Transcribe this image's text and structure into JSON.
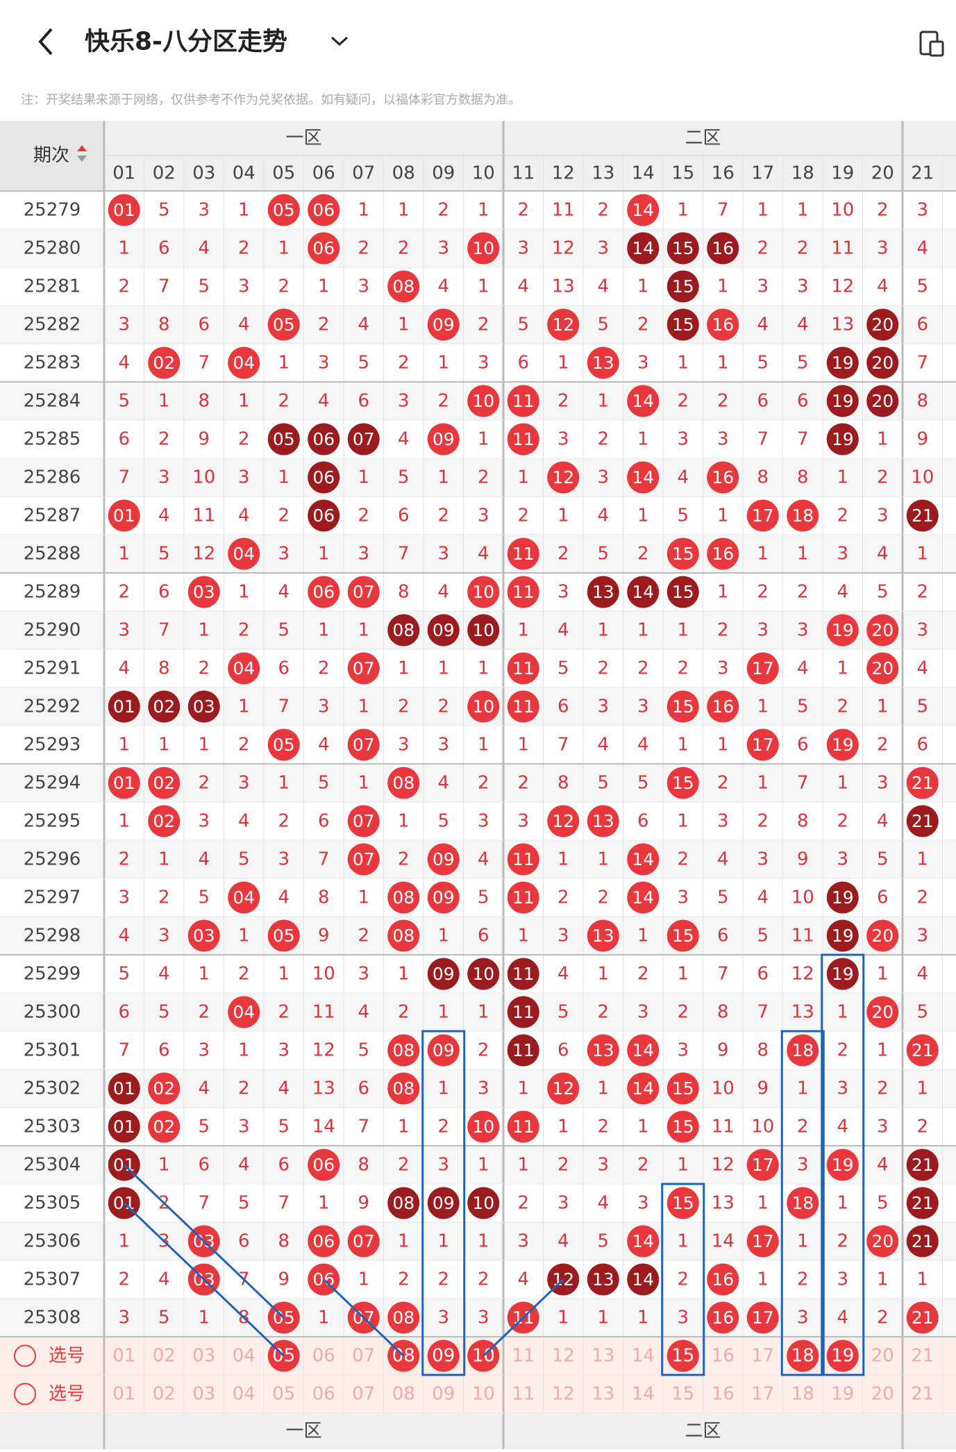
{
  "header": {
    "title": "快乐8-八分区走势",
    "note": "注：开奖结果来源于网络，仅供参考不作为兑奖依据。如有疑问，以福体彩官方数据为准。"
  },
  "table": {
    "period_label": "期次",
    "zones": [
      "一区",
      "二区"
    ],
    "columns": [
      "01",
      "02",
      "03",
      "04",
      "05",
      "06",
      "07",
      "08",
      "09",
      "10",
      "11",
      "12",
      "13",
      "14",
      "15",
      "16",
      "17",
      "18",
      "19",
      "20",
      "21"
    ],
    "rows": [
      {
        "issue": "25279",
        "cells": [
          "01",
          5,
          3,
          1,
          "05",
          "06",
          1,
          1,
          2,
          1,
          2,
          11,
          2,
          "14",
          1,
          7,
          1,
          1,
          10,
          2,
          3
        ],
        "dark": []
      },
      {
        "issue": "25280",
        "cells": [
          1,
          6,
          4,
          2,
          1,
          "06",
          2,
          2,
          3,
          "10",
          3,
          12,
          3,
          "14",
          "15",
          "16",
          2,
          2,
          11,
          3,
          4
        ],
        "dark": [
          13,
          14,
          15
        ]
      },
      {
        "issue": "25281",
        "cells": [
          2,
          7,
          5,
          3,
          2,
          1,
          3,
          "08",
          4,
          1,
          4,
          13,
          4,
          1,
          "15",
          1,
          3,
          3,
          12,
          4,
          5
        ],
        "dark": [
          14
        ]
      },
      {
        "issue": "25282",
        "cells": [
          3,
          8,
          6,
          4,
          "05",
          2,
          4,
          1,
          "09",
          2,
          5,
          "12",
          5,
          2,
          "15",
          "16",
          4,
          4,
          13,
          "20",
          6
        ],
        "dark": [
          14,
          19
        ]
      },
      {
        "issue": "25283",
        "cells": [
          4,
          "02",
          7,
          "04",
          1,
          3,
          5,
          2,
          1,
          3,
          6,
          1,
          "13",
          3,
          1,
          1,
          5,
          5,
          "19",
          "20",
          7
        ],
        "dark": [
          18,
          19
        ]
      },
      {
        "issue": "25284",
        "cells": [
          5,
          1,
          8,
          1,
          2,
          4,
          6,
          3,
          2,
          "10",
          "11",
          2,
          1,
          "14",
          2,
          2,
          6,
          6,
          "19",
          "20",
          8
        ],
        "dark": [
          18,
          19
        ]
      },
      {
        "issue": "25285",
        "cells": [
          6,
          2,
          9,
          2,
          "05",
          "06",
          "07",
          4,
          "09",
          1,
          "11",
          3,
          2,
          1,
          3,
          3,
          7,
          7,
          "19",
          1,
          9
        ],
        "dark": [
          4,
          5,
          6,
          18
        ]
      },
      {
        "issue": "25286",
        "cells": [
          7,
          3,
          10,
          3,
          1,
          "06",
          1,
          5,
          1,
          2,
          1,
          "12",
          3,
          "14",
          4,
          "16",
          8,
          8,
          1,
          2,
          10
        ],
        "dark": [
          5
        ]
      },
      {
        "issue": "25287",
        "cells": [
          "01",
          4,
          11,
          4,
          2,
          "06",
          2,
          6,
          2,
          3,
          2,
          1,
          4,
          1,
          5,
          1,
          "17",
          "18",
          2,
          3,
          "21"
        ],
        "dark": [
          5,
          20
        ]
      },
      {
        "issue": "25288",
        "cells": [
          1,
          5,
          12,
          "04",
          3,
          1,
          3,
          7,
          3,
          4,
          "11",
          2,
          5,
          2,
          "15",
          "16",
          1,
          1,
          3,
          4,
          1
        ],
        "dark": []
      },
      {
        "issue": "25289",
        "cells": [
          2,
          6,
          "03",
          1,
          4,
          "06",
          "07",
          8,
          4,
          "10",
          "11",
          3,
          "13",
          "14",
          "15",
          1,
          2,
          2,
          4,
          5,
          2
        ],
        "dark": [
          12,
          13,
          14
        ]
      },
      {
        "issue": "25290",
        "cells": [
          3,
          7,
          1,
          2,
          5,
          1,
          1,
          "08",
          "09",
          "10",
          1,
          4,
          1,
          1,
          1,
          2,
          3,
          3,
          "19",
          "20",
          3
        ],
        "dark": [
          7,
          8,
          9
        ]
      },
      {
        "issue": "25291",
        "cells": [
          4,
          8,
          2,
          "04",
          6,
          2,
          "07",
          1,
          1,
          1,
          "11",
          5,
          2,
          2,
          2,
          3,
          "17",
          4,
          1,
          "20",
          4
        ],
        "dark": []
      },
      {
        "issue": "25292",
        "cells": [
          "01",
          "02",
          "03",
          1,
          7,
          3,
          1,
          2,
          2,
          "10",
          "11",
          6,
          3,
          3,
          "15",
          "16",
          1,
          5,
          2,
          1,
          5
        ],
        "dark": [
          0,
          1,
          2
        ]
      },
      {
        "issue": "25293",
        "cells": [
          1,
          1,
          1,
          2,
          "05",
          4,
          "07",
          3,
          3,
          1,
          1,
          7,
          4,
          4,
          1,
          1,
          "17",
          6,
          "19",
          2,
          6
        ],
        "dark": []
      },
      {
        "issue": "25294",
        "cells": [
          "01",
          "02",
          2,
          3,
          1,
          5,
          1,
          "08",
          4,
          2,
          2,
          8,
          5,
          5,
          "15",
          2,
          1,
          7,
          1,
          3,
          "21"
        ],
        "dark": []
      },
      {
        "issue": "25295",
        "cells": [
          1,
          "02",
          3,
          4,
          2,
          6,
          "07",
          1,
          5,
          3,
          3,
          "12",
          "13",
          6,
          1,
          3,
          2,
          8,
          2,
          4,
          "21"
        ],
        "dark": [
          20
        ]
      },
      {
        "issue": "25296",
        "cells": [
          2,
          1,
          4,
          5,
          3,
          7,
          "07",
          2,
          "09",
          4,
          "11",
          1,
          1,
          "14",
          2,
          4,
          3,
          9,
          3,
          5,
          1
        ],
        "dark": []
      },
      {
        "issue": "25297",
        "cells": [
          3,
          2,
          5,
          "04",
          4,
          8,
          1,
          "08",
          "09",
          5,
          "11",
          2,
          2,
          "14",
          3,
          5,
          4,
          10,
          "19",
          6,
          2
        ],
        "dark": [
          18
        ]
      },
      {
        "issue": "25298",
        "cells": [
          4,
          3,
          "03",
          1,
          "05",
          9,
          2,
          "08",
          1,
          6,
          1,
          3,
          "13",
          1,
          "15",
          6,
          5,
          11,
          "19",
          "20",
          3
        ],
        "dark": [
          18
        ]
      },
      {
        "issue": "25299",
        "cells": [
          5,
          4,
          1,
          2,
          1,
          10,
          3,
          1,
          "09",
          "10",
          "11",
          4,
          1,
          2,
          1,
          7,
          6,
          12,
          "19",
          1,
          4
        ],
        "dark": [
          8,
          9,
          10,
          18
        ]
      },
      {
        "issue": "25300",
        "cells": [
          6,
          5,
          2,
          "04",
          2,
          11,
          4,
          2,
          1,
          1,
          "11",
          5,
          2,
          3,
          2,
          8,
          7,
          13,
          1,
          "20",
          5
        ],
        "dark": [
          10
        ]
      },
      {
        "issue": "25301",
        "cells": [
          7,
          6,
          3,
          1,
          3,
          12,
          5,
          "08",
          "09",
          2,
          "11",
          6,
          "13",
          "14",
          3,
          9,
          8,
          "18",
          2,
          1,
          "21"
        ],
        "dark": [
          10
        ]
      },
      {
        "issue": "25302",
        "cells": [
          "01",
          "02",
          4,
          2,
          4,
          13,
          6,
          "08",
          1,
          3,
          1,
          "12",
          1,
          "14",
          "15",
          10,
          9,
          1,
          3,
          2,
          1
        ],
        "dark": [
          0
        ]
      },
      {
        "issue": "25303",
        "cells": [
          "01",
          "02",
          5,
          3,
          5,
          14,
          7,
          1,
          2,
          "10",
          "11",
          1,
          2,
          1,
          "15",
          11,
          10,
          2,
          4,
          3,
          2
        ],
        "dark": [
          0
        ]
      },
      {
        "issue": "25304",
        "cells": [
          "01",
          1,
          6,
          4,
          6,
          "06",
          8,
          2,
          3,
          1,
          1,
          2,
          3,
          2,
          1,
          12,
          "17",
          3,
          "19",
          4,
          "21"
        ],
        "dark": [
          0,
          20
        ]
      },
      {
        "issue": "25305",
        "cells": [
          "01",
          2,
          7,
          5,
          7,
          1,
          9,
          "08",
          "09",
          "10",
          2,
          3,
          4,
          3,
          "15",
          13,
          1,
          "18",
          1,
          5,
          "21"
        ],
        "dark": [
          0,
          7,
          8,
          9,
          20
        ]
      },
      {
        "issue": "25306",
        "cells": [
          1,
          3,
          "03",
          6,
          8,
          "06",
          "07",
          1,
          1,
          1,
          3,
          4,
          5,
          "14",
          1,
          14,
          "17",
          1,
          2,
          "20",
          "21"
        ],
        "dark": [
          20
        ]
      },
      {
        "issue": "25307",
        "cells": [
          2,
          4,
          "03",
          7,
          9,
          "06",
          1,
          2,
          2,
          2,
          4,
          "12",
          "13",
          "14",
          2,
          "16",
          1,
          2,
          3,
          1,
          1
        ],
        "dark": [
          11,
          12,
          13
        ]
      },
      {
        "issue": "25308",
        "cells": [
          3,
          5,
          1,
          8,
          "05",
          1,
          "07",
          "08",
          3,
          3,
          "11",
          1,
          1,
          1,
          3,
          "16",
          "17",
          3,
          4,
          2,
          "21"
        ],
        "dark": []
      }
    ],
    "select_rows": [
      {
        "label": "选号",
        "picked": [
          4,
          7,
          8,
          9,
          14,
          17,
          18
        ]
      },
      {
        "label": "选号",
        "picked": []
      }
    ]
  }
}
